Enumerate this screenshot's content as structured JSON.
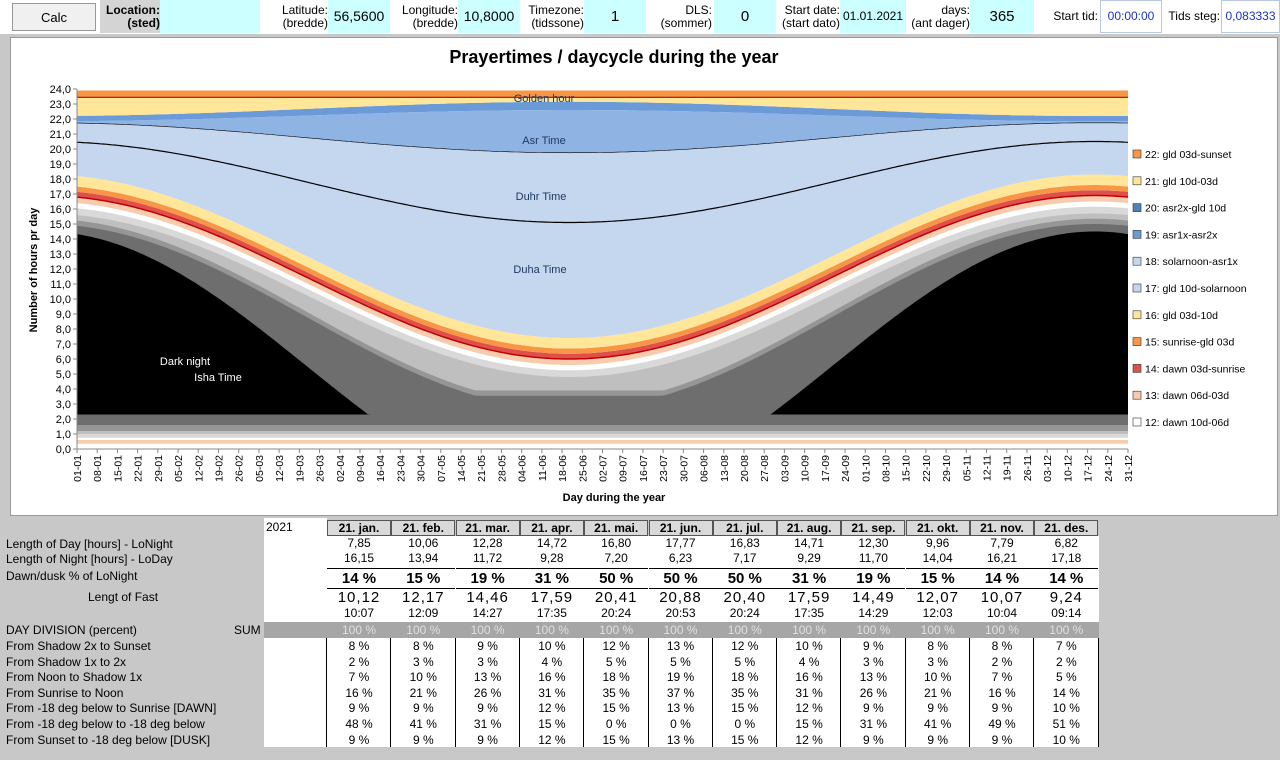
{
  "toolbar": {
    "calc_label": "Calc",
    "location_label": "Location:",
    "location_sub": "(sted)",
    "location_value": "",
    "lat_label": "Latitude:",
    "lat_sub": "(bredde)",
    "lat_value": "56,5600",
    "lon_label": "Longitude:",
    "lon_sub": "(bredde)",
    "lon_value": "10,8000",
    "tz_label": "Timezone:",
    "tz_sub": "(tidssone)",
    "tz_value": "1",
    "dls_label": "DLS:",
    "dls_sub": "(sommer)",
    "dls_value": "0",
    "start_label": "Start date:",
    "start_sub": "(start dato)",
    "start_value": "01.01.2021",
    "days_label": "days:",
    "days_sub": "(ant dager)",
    "days_value": "365",
    "starttid_label": "Start tid:",
    "starttid_value": "00:00:00",
    "tidssteg_label": "Tids steg:",
    "tidssteg_value": "0,083333"
  },
  "chart_data": {
    "type": "area",
    "title": "Prayertimes / daycycle during the year",
    "xlabel": "Day during the year",
    "ylabel": "Number of hours pr day",
    "ylim": [
      0,
      24
    ],
    "yticks": [
      "0,0",
      "1,0",
      "2,0",
      "3,0",
      "4,0",
      "5,0",
      "6,0",
      "7,0",
      "8,0",
      "9,0",
      "10,0",
      "11,0",
      "12,0",
      "13,0",
      "14,0",
      "15,0",
      "16,0",
      "17,0",
      "18,0",
      "19,0",
      "20,0",
      "21,0",
      "22,0",
      "23,0",
      "24,0"
    ],
    "x_tick_labels": [
      "01-01",
      "08-01",
      "15-01",
      "22-01",
      "29-01",
      "05-02",
      "12-02",
      "19-02",
      "26-02",
      "05-03",
      "12-03",
      "19-03",
      "26-03",
      "02-04",
      "09-04",
      "16-04",
      "23-04",
      "30-04",
      "07-05",
      "14-05",
      "21-05",
      "28-05",
      "04-06",
      "11-06",
      "18-06",
      "25-06",
      "02-07",
      "09-07",
      "16-07",
      "23-07",
      "30-07",
      "06-08",
      "13-08",
      "20-08",
      "27-08",
      "03-09",
      "10-09",
      "17-09",
      "24-09",
      "01-10",
      "08-10",
      "15-10",
      "22-10",
      "29-10",
      "05-11",
      "12-11",
      "19-11",
      "26-11",
      "03-12",
      "10-12",
      "17-12",
      "24-12",
      "31-12"
    ],
    "annotations": [
      "Golden hour",
      "Asr Time",
      "Duhr Time",
      "Duha Time",
      "Dark night",
      "Isha Time"
    ],
    "legend_position": "right",
    "legend": [
      {
        "label": "22: gld 03d-sunset",
        "color": "#f79646"
      },
      {
        "label": "21: gld 10d-03d",
        "color": "#ffe699"
      },
      {
        "label": "20: asr2x-gld 10d",
        "color": "#4f81bd"
      },
      {
        "label": "19: asr1x-asr2x",
        "color": "#6a9bd8"
      },
      {
        "label": "18: solarnoon-asr1x",
        "color": "#c5d7ee"
      },
      {
        "label": "17: gld 10d-solarnoon",
        "color": "#c5d7ee"
      },
      {
        "label": "16: gld 03d-10d",
        "color": "#ffe699"
      },
      {
        "label": "15: sunrise-gld 03d",
        "color": "#f79646"
      },
      {
        "label": "14: dawn 03d-sunrise",
        "color": "#e0504a"
      },
      {
        "label": "13: dawn 06d-03d",
        "color": "#f8cbad"
      },
      {
        "label": "12: dawn 10d-06d",
        "color": "#ffffff"
      }
    ],
    "months": [
      "21. jan.",
      "21. feb.",
      "21. mar.",
      "21. apr.",
      "21. mai.",
      "21. jun.",
      "21. jul.",
      "21. aug.",
      "21. sep.",
      "21. okt.",
      "21. nov.",
      "21. des."
    ],
    "day_length_hours": [
      7.85,
      10.06,
      12.28,
      14.72,
      16.8,
      17.77,
      16.83,
      14.71,
      12.3,
      9.96,
      7.79,
      6.82
    ],
    "night_length_hours": [
      16.15,
      13.94,
      11.72,
      9.28,
      7.2,
      6.23,
      7.17,
      9.29,
      11.7,
      14.04,
      16.21,
      17.18
    ]
  },
  "table": {
    "year": "2021",
    "months": [
      "21. jan.",
      "21. feb.",
      "21. mar.",
      "21. apr.",
      "21. mai.",
      "21. jun.",
      "21. jul.",
      "21. aug.",
      "21. sep.",
      "21. okt.",
      "21. nov.",
      "21. des."
    ],
    "rows": [
      {
        "label": "Length of Day [hours] - LoNight",
        "values": [
          "7,85",
          "10,06",
          "12,28",
          "14,72",
          "16,80",
          "17,77",
          "16,83",
          "14,71",
          "12,30",
          "9,96",
          "7,79",
          "6,82"
        ]
      },
      {
        "label": "Length of Night [hours] - LoDay",
        "values": [
          "16,15",
          "13,94",
          "11,72",
          "9,28",
          "7,20",
          "6,23",
          "7,17",
          "9,29",
          "11,70",
          "14,04",
          "16,21",
          "17,18"
        ]
      },
      {
        "label": "Dawn/dusk % of LoNight",
        "values": [
          "14 %",
          "15 %",
          "19 %",
          "31 %",
          "50 %",
          "50 %",
          "50 %",
          "31 %",
          "19 %",
          "15 %",
          "14 %",
          "14 %"
        ]
      },
      {
        "label": "Lengt of Fast",
        "values": [
          "10,12",
          "12,17",
          "14,46",
          "17,59",
          "20,41",
          "20,88",
          "20,40",
          "17,59",
          "14,49",
          "12,07",
          "10,07",
          "9,24"
        ]
      },
      {
        "label": "",
        "values": [
          "10:07",
          "12:09",
          "14:27",
          "17:35",
          "20:24",
          "20:53",
          "20:24",
          "17:35",
          "14:29",
          "12:03",
          "10:04",
          "09:14"
        ]
      }
    ],
    "division_label": "DAY DIVISION (percent)",
    "sum_label": "SUM",
    "sum_values": [
      "100 %",
      "100 %",
      "100 %",
      "100 %",
      "100 %",
      "100 %",
      "100 %",
      "100 %",
      "100 %",
      "100 %",
      "100 %",
      "100 %"
    ],
    "division_rows": [
      {
        "label": "From Shadow 2x to Sunset",
        "values": [
          "8 %",
          "8 %",
          "9 %",
          "10 %",
          "12 %",
          "13 %",
          "12 %",
          "10 %",
          "9 %",
          "8 %",
          "8 %",
          "7 %"
        ]
      },
      {
        "label": "From Shadow 1x to 2x",
        "values": [
          "2 %",
          "3 %",
          "3 %",
          "4 %",
          "5 %",
          "5 %",
          "5 %",
          "4 %",
          "3 %",
          "3 %",
          "2 %",
          "2 %"
        ]
      },
      {
        "label": "From Noon to Shadow 1x",
        "values": [
          "7 %",
          "10 %",
          "13 %",
          "16 %",
          "18 %",
          "19 %",
          "18 %",
          "16 %",
          "13 %",
          "10 %",
          "7 %",
          "5 %"
        ]
      },
      {
        "label": "From Sunrise to Noon",
        "values": [
          "16 %",
          "21 %",
          "26 %",
          "31 %",
          "35 %",
          "37 %",
          "35 %",
          "31 %",
          "26 %",
          "21 %",
          "16 %",
          "14 %"
        ]
      },
      {
        "label": "From -18 deg below to Sunrise [DAWN]",
        "values": [
          "9 %",
          "9 %",
          "9 %",
          "12 %",
          "15 %",
          "13 %",
          "15 %",
          "12 %",
          "9 %",
          "9 %",
          "9 %",
          "10 %"
        ]
      },
      {
        "label": "From -18 deg below to -18 deg below",
        "values": [
          "48 %",
          "41 %",
          "31 %",
          "15 %",
          "0 %",
          "0 %",
          "0 %",
          "15 %",
          "31 %",
          "41 %",
          "49 %",
          "51 %"
        ]
      },
      {
        "label": "From Sunset to -18 deg below [DUSK]",
        "values": [
          "9 %",
          "9 %",
          "9 %",
          "12 %",
          "15 %",
          "13 %",
          "15 %",
          "12 %",
          "9 %",
          "9 %",
          "9 %",
          "10 %"
        ]
      }
    ]
  }
}
